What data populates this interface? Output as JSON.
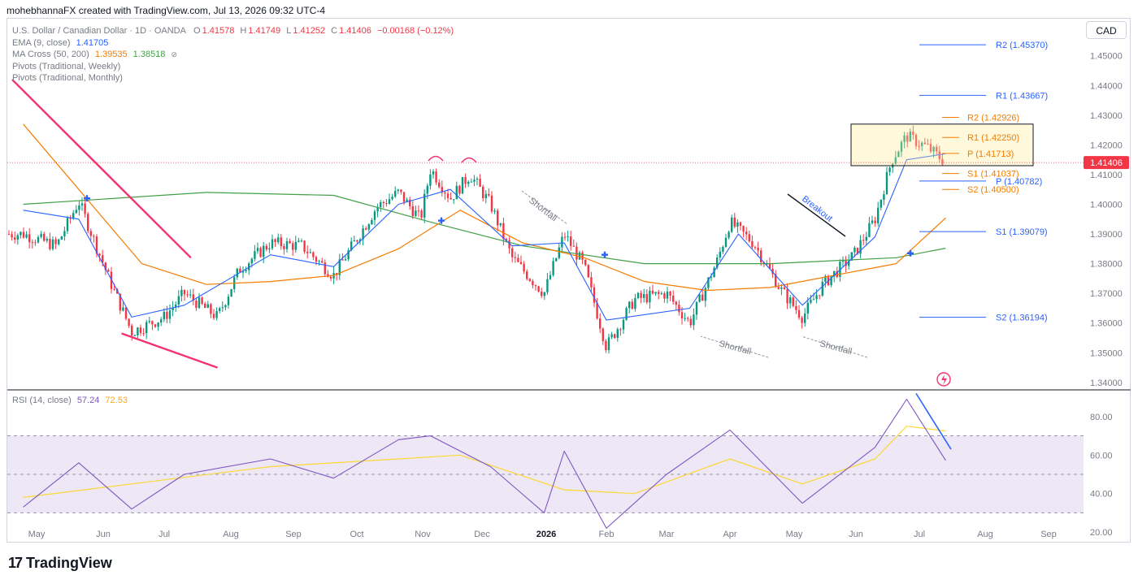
{
  "header": {
    "caption": "mohebhannaFX created with TradingView.com, Jul 13, 2026 09:32 UTC-4"
  },
  "legend": {
    "symbol": "U.S. Dollar / Canadian Dollar · 1D · OANDA",
    "open_label": "O",
    "open": "1.41578",
    "high_label": "H",
    "high": "1.41749",
    "low_label": "L",
    "low": "1.41252",
    "close_label": "C",
    "close": "1.41406",
    "change": "−0.00168 (−0.12%)",
    "ema_label": "EMA (9, close)",
    "ema_value": "1.41705",
    "ma_label": "MA Cross (50, 200)",
    "ma50_value": "1.39535",
    "ma200_value": "1.38518",
    "weekly_pivots_label": "Pivots (Traditional, Weekly)",
    "monthly_pivots_label": "Pivots (Traditional, Monthly)"
  },
  "currency_button": "CAD",
  "last_price_label": "1.41406",
  "rsi_legend": {
    "label": "RSI (14, close)",
    "rsi_value": "57.24",
    "ma_value": "72.53"
  },
  "footer": {
    "brand": "TradingView",
    "logo_glyph": "17"
  },
  "colors": {
    "bull": "#089981",
    "bear": "#f23645",
    "ema": "#2962ff",
    "ma50": "#f57c00",
    "ma200": "#43a047",
    "trendline": "#f2336f",
    "pivot_monthly": "#2962ff",
    "pivot_weekly": "#f57c00",
    "rsi": "#7e57c2",
    "rsi_ma": "#fdd835",
    "rsi_band": "#ede7f6"
  },
  "chart_data": {
    "type": "candlestick",
    "symbol": "USDCAD",
    "interval": "1D",
    "x_ticks": [
      "May",
      "Jun",
      "Jul",
      "Aug",
      "Sep",
      "Oct",
      "Nov",
      "Dec",
      "2026",
      "Feb",
      "Mar",
      "Apr",
      "May",
      "Jun",
      "Jul",
      "Aug",
      "Sep"
    ],
    "y_ticks": [
      "1.45000",
      "1.44000",
      "1.43000",
      "1.42000",
      "1.41000",
      "1.40000",
      "1.39000",
      "1.38000",
      "1.37000",
      "1.36000",
      "1.35000",
      "1.34000"
    ],
    "ylim": [
      1.3375,
      1.4625
    ],
    "rsi_ticks": [
      "80.00",
      "60.00",
      "40.00",
      "20.00"
    ],
    "rsi_ylim": [
      15,
      93
    ],
    "rsi_bands": [
      70,
      50,
      30
    ],
    "close_path": [
      {
        "t": "Apr 25",
        "v": 1.39
      },
      {
        "t": "May 10",
        "v": 1.386
      },
      {
        "t": "May 20",
        "v": 1.401
      },
      {
        "t": "Jun 5",
        "v": 1.373
      },
      {
        "t": "Jun 15",
        "v": 1.357
      },
      {
        "t": "Jul 1",
        "v": 1.362
      },
      {
        "t": "Jul 10",
        "v": 1.37
      },
      {
        "t": "Jul 25",
        "v": 1.362
      },
      {
        "t": "Aug 5",
        "v": 1.378
      },
      {
        "t": "Aug 20",
        "v": 1.387
      },
      {
        "t": "Sep 5",
        "v": 1.386
      },
      {
        "t": "Sep 20",
        "v": 1.376
      },
      {
        "t": "Oct 10",
        "v": 1.399
      },
      {
        "t": "Oct 20",
        "v": 1.404
      },
      {
        "t": "Oct 30",
        "v": 1.395
      },
      {
        "t": "Nov 5",
        "v": 1.412
      },
      {
        "t": "Nov 15",
        "v": 1.402
      },
      {
        "t": "Nov 25",
        "v": 1.41
      },
      {
        "t": "Dec 5",
        "v": 1.4
      },
      {
        "t": "Dec 15",
        "v": 1.382
      },
      {
        "t": "Dec 30",
        "v": 1.37
      },
      {
        "t": "Jan 10",
        "v": 1.39
      },
      {
        "t": "Jan 20",
        "v": 1.379
      },
      {
        "t": "Feb 1",
        "v": 1.352
      },
      {
        "t": "Feb 15",
        "v": 1.368
      },
      {
        "t": "Mar 1",
        "v": 1.37
      },
      {
        "t": "Mar 12",
        "v": 1.36
      },
      {
        "t": "Mar 25",
        "v": 1.381
      },
      {
        "t": "Apr 1",
        "v": 1.394
      },
      {
        "t": "Apr 12",
        "v": 1.387
      },
      {
        "t": "Apr 25",
        "v": 1.371
      },
      {
        "t": "May 5",
        "v": 1.362
      },
      {
        "t": "May 15",
        "v": 1.373
      },
      {
        "t": "May 30",
        "v": 1.383
      },
      {
        "t": "Jun 10",
        "v": 1.395
      },
      {
        "t": "Jun 18",
        "v": 1.415
      },
      {
        "t": "Jun 25",
        "v": 1.423
      },
      {
        "t": "Jul 5",
        "v": 1.419
      },
      {
        "t": "Jul 13",
        "v": 1.4141
      }
    ],
    "ema9_path": [
      {
        "t": "Apr 25",
        "v": 1.398
      },
      {
        "t": "May 20",
        "v": 1.395
      },
      {
        "t": "Jun 15",
        "v": 1.362
      },
      {
        "t": "Jul 10",
        "v": 1.366
      },
      {
        "t": "Aug 20",
        "v": 1.383
      },
      {
        "t": "Sep 20",
        "v": 1.379
      },
      {
        "t": "Oct 20",
        "v": 1.4
      },
      {
        "t": "Nov 15",
        "v": 1.405
      },
      {
        "t": "Dec 15",
        "v": 1.386
      },
      {
        "t": "Jan 10",
        "v": 1.387
      },
      {
        "t": "Feb 1",
        "v": 1.361
      },
      {
        "t": "Mar 12",
        "v": 1.365
      },
      {
        "t": "Apr 5",
        "v": 1.39
      },
      {
        "t": "May 5",
        "v": 1.366
      },
      {
        "t": "Jun 10",
        "v": 1.389
      },
      {
        "t": "Jun 25",
        "v": 1.415
      },
      {
        "t": "Jul 13",
        "v": 1.417
      }
    ],
    "ma50_path": [
      {
        "t": "Apr 25",
        "v": 1.427
      },
      {
        "t": "May 20",
        "v": 1.405
      },
      {
        "t": "Jun 20",
        "v": 1.38
      },
      {
        "t": "Jul 20",
        "v": 1.373
      },
      {
        "t": "Aug 20",
        "v": 1.374
      },
      {
        "t": "Sep 20",
        "v": 1.376
      },
      {
        "t": "Oct 20",
        "v": 1.385
      },
      {
        "t": "Nov 20",
        "v": 1.398
      },
      {
        "t": "Dec 20",
        "v": 1.387
      },
      {
        "t": "Jan 20",
        "v": 1.382
      },
      {
        "t": "Feb 20",
        "v": 1.374
      },
      {
        "t": "Mar 20",
        "v": 1.371
      },
      {
        "t": "Apr 20",
        "v": 1.372
      },
      {
        "t": "May 20",
        "v": 1.376
      },
      {
        "t": "Jun 20",
        "v": 1.38
      },
      {
        "t": "Jul 13",
        "v": 1.3954
      }
    ],
    "ma200_path": [
      {
        "t": "Apr 25",
        "v": 1.4
      },
      {
        "t": "Jul 20",
        "v": 1.404
      },
      {
        "t": "Sep 20",
        "v": 1.403
      },
      {
        "t": "Nov 5",
        "v": 1.394
      },
      {
        "t": "Dec 20",
        "v": 1.386
      },
      {
        "t": "Feb 20",
        "v": 1.38
      },
      {
        "t": "Apr 20",
        "v": 1.38
      },
      {
        "t": "Jun 20",
        "v": 1.382
      },
      {
        "t": "Jul 13",
        "v": 1.3852
      }
    ],
    "rsi_path": [
      {
        "t": "Apr 25",
        "v": 33
      },
      {
        "t": "May 20",
        "v": 56
      },
      {
        "t": "Jun 15",
        "v": 32
      },
      {
        "t": "Jul 10",
        "v": 50
      },
      {
        "t": "Aug 20",
        "v": 58
      },
      {
        "t": "Sep 20",
        "v": 48
      },
      {
        "t": "Oct 20",
        "v": 68
      },
      {
        "t": "Nov 5",
        "v": 70
      },
      {
        "t": "Dec 5",
        "v": 54
      },
      {
        "t": "Dec 30",
        "v": 30
      },
      {
        "t": "Jan 10",
        "v": 62
      },
      {
        "t": "Feb 1",
        "v": 22
      },
      {
        "t": "Mar 1",
        "v": 50
      },
      {
        "t": "Apr 1",
        "v": 73
      },
      {
        "t": "May 5",
        "v": 35
      },
      {
        "t": "Jun 10",
        "v": 64
      },
      {
        "t": "Jun 25",
        "v": 89
      },
      {
        "t": "Jul 13",
        "v": 57.24
      }
    ],
    "rsi_ma_path": [
      {
        "t": "Apr 25",
        "v": 38
      },
      {
        "t": "Jun 15",
        "v": 45
      },
      {
        "t": "Aug 20",
        "v": 54
      },
      {
        "t": "Oct 20",
        "v": 58
      },
      {
        "t": "Nov 20",
        "v": 60
      },
      {
        "t": "Jan 10",
        "v": 42
      },
      {
        "t": "Feb 15",
        "v": 40
      },
      {
        "t": "Apr 1",
        "v": 58
      },
      {
        "t": "May 5",
        "v": 45
      },
      {
        "t": "Jun 10",
        "v": 58
      },
      {
        "t": "Jun 25",
        "v": 75
      },
      {
        "t": "Jul 13",
        "v": 72.53
      }
    ],
    "trendlines": [
      {
        "name": "upper-trendline",
        "from": {
          "t": "Apr 20",
          "v": 1.442
        },
        "to": {
          "t": "Jul 13",
          "v": 1.382
        }
      },
      {
        "name": "lower-trendline",
        "from": {
          "t": "Jun 10",
          "v": 1.3565
        },
        "to": {
          "t": "Jul 25",
          "v": 1.345
        }
      }
    ],
    "pivots_monthly": [
      {
        "label": "R2 (1.45370)",
        "v": 1.4537
      },
      {
        "label": "R1 (1.43667)",
        "v": 1.43667
      },
      {
        "label": "P (1.40782)",
        "v": 1.40782
      },
      {
        "label": "S1 (1.39079)",
        "v": 1.39079
      },
      {
        "label": "S2 (1.36194)",
        "v": 1.36194
      }
    ],
    "pivots_weekly": [
      {
        "label": "R2 (1.42926)",
        "v": 1.42926
      },
      {
        "label": "R1 (1.42250)",
        "v": 1.4225
      },
      {
        "label": "P (1.41713)",
        "v": 1.41713
      },
      {
        "label": "S1 (1.41037)",
        "v": 1.41037
      },
      {
        "label": "S2 (1.40500)",
        "v": 1.405
      }
    ],
    "annotations": [
      "Shortfall",
      "Shortfall",
      "Shortfall",
      "Breakout"
    ]
  }
}
